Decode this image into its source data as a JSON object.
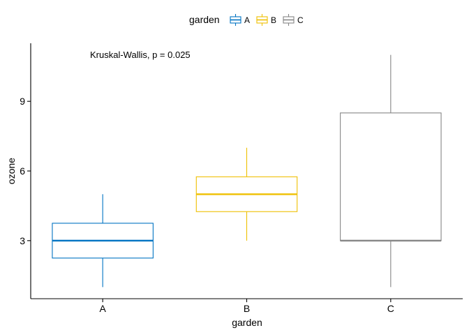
{
  "chart_data": {
    "type": "boxplot",
    "xlabel": "garden",
    "ylabel": "ozone",
    "ylim": [
      0.5,
      11.5
    ],
    "yticks": [
      3,
      6,
      9
    ],
    "categories": [
      "A",
      "B",
      "C"
    ],
    "series": [
      {
        "name": "A",
        "color": "#0073C2",
        "whisker_low": 1,
        "q1": 2.25,
        "median": 3,
        "q3": 3.75,
        "whisker_high": 5
      },
      {
        "name": "B",
        "color": "#EFC000",
        "whisker_low": 3,
        "q1": 4.25,
        "median": 5,
        "q3": 5.75,
        "whisker_high": 7
      },
      {
        "name": "C",
        "color": "#868686",
        "whisker_low": 1,
        "q1": 3,
        "median": 3,
        "q3": 8.5,
        "whisker_high": 11
      }
    ],
    "legend": {
      "title": "garden",
      "position": "top",
      "labels": [
        "A",
        "B",
        "C"
      ]
    },
    "annotation": "Kruskal-Wallis, p = 0.025",
    "grid": false
  }
}
